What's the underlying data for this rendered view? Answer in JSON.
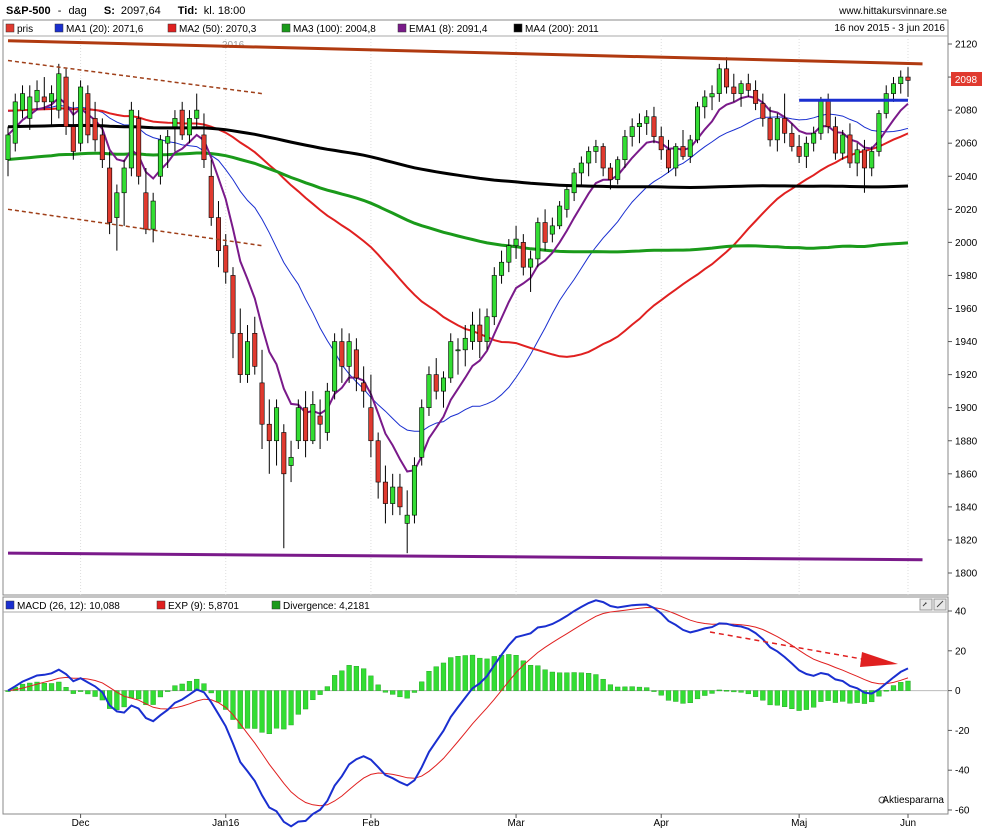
{
  "header": {
    "symbol": "S&P-500",
    "sep": "-",
    "period": "dag",
    "close_label": "S:",
    "close_value": "2097,64",
    "time_label": "Tid:",
    "time_value": "kl. 18:00",
    "site": "www.hittakursvinnare.se"
  },
  "legend_top": {
    "items": [
      {
        "label": "pris",
        "color": "#e03a2f"
      },
      {
        "label": "MA1 (20): 2071,6",
        "color": "#1a2fd0"
      },
      {
        "label": "MA2 (50): 2070,3",
        "color": "#e02020"
      },
      {
        "label": "MA3 (100): 2004,8",
        "color": "#1a9a1a"
      },
      {
        "label": "EMA1 (8): 2091,4",
        "color": "#7a1a8a"
      },
      {
        "label": "MA4 (200): 2011",
        "color": "#000000"
      }
    ],
    "date_range": "16 nov 2015 - 3 jun 2016"
  },
  "price_badge": "2098",
  "year_mark": "2016",
  "legend_bottom": {
    "items": [
      {
        "label": "MACD (26, 12): 10,088",
        "color": "#1a2fd0"
      },
      {
        "label": "EXP (9): 5,8701",
        "color": "#e02020"
      },
      {
        "label": "Divergence: 4,2181",
        "color": "#1a9a1a"
      }
    ]
  },
  "watermark": "Aktiespararna",
  "chart_data": [
    {
      "type": "candlestick",
      "y_ticks": [
        "2120",
        "2100",
        "2080",
        "2060",
        "2040",
        "2020",
        "2000",
        "1980",
        "1960",
        "1940",
        "1920",
        "1900",
        "1880",
        "1860",
        "1840",
        "1820",
        "1800"
      ],
      "ylim": [
        1790,
        2125
      ],
      "x_ticks": [
        "Dec",
        "Jan16",
        "Feb",
        "Mar",
        "Apr",
        "Maj",
        "Jun"
      ],
      "ohlc": [
        [
          2050,
          2070,
          2040,
          2065
        ],
        [
          2060,
          2090,
          2055,
          2085
        ],
        [
          2080,
          2095,
          2075,
          2090
        ],
        [
          2075,
          2095,
          2068,
          2088
        ],
        [
          2085,
          2098,
          2080,
          2092
        ],
        [
          2088,
          2100,
          2080,
          2085
        ],
        [
          2085,
          2095,
          2070,
          2090
        ],
        [
          2080,
          2108,
          2075,
          2102
        ],
        [
          2100,
          2105,
          2065,
          2070
        ],
        [
          2070,
          2085,
          2050,
          2055
        ],
        [
          2060,
          2098,
          2055,
          2094
        ],
        [
          2090,
          2095,
          2060,
          2065
        ],
        [
          2075,
          2085,
          2055,
          2062
        ],
        [
          2065,
          2075,
          2045,
          2050
        ],
        [
          2045,
          2055,
          2005,
          2012
        ],
        [
          2015,
          2035,
          1995,
          2030
        ],
        [
          2030,
          2050,
          2010,
          2045
        ],
        [
          2045,
          2085,
          2040,
          2080
        ],
        [
          2075,
          2080,
          2035,
          2040
        ],
        [
          2030,
          2045,
          2005,
          2008
        ],
        [
          2008,
          2030,
          2000,
          2025
        ],
        [
          2040,
          2065,
          2035,
          2062
        ],
        [
          2060,
          2068,
          2045,
          2064
        ],
        [
          2070,
          2080,
          2055,
          2075
        ],
        [
          2080,
          2085,
          2062,
          2065
        ],
        [
          2065,
          2080,
          2060,
          2075
        ],
        [
          2075,
          2090,
          2070,
          2080
        ],
        [
          2065,
          2078,
          2045,
          2050
        ],
        [
          2040,
          2050,
          2010,
          2015
        ],
        [
          2015,
          2025,
          1985,
          1995
        ],
        [
          1998,
          2005,
          1975,
          1982
        ],
        [
          1980,
          1985,
          1930,
          1945
        ],
        [
          1945,
          1960,
          1915,
          1920
        ],
        [
          1920,
          1950,
          1915,
          1940
        ],
        [
          1945,
          1955,
          1920,
          1925
        ],
        [
          1915,
          1935,
          1875,
          1890
        ],
        [
          1890,
          1905,
          1860,
          1880
        ],
        [
          1880,
          1905,
          1865,
          1900
        ],
        [
          1885,
          1890,
          1815,
          1860
        ],
        [
          1865,
          1880,
          1855,
          1870
        ],
        [
          1880,
          1905,
          1875,
          1900
        ],
        [
          1900,
          1910,
          1870,
          1880
        ],
        [
          1880,
          1910,
          1878,
          1902
        ],
        [
          1895,
          1905,
          1875,
          1890
        ],
        [
          1885,
          1915,
          1880,
          1910
        ],
        [
          1910,
          1945,
          1905,
          1940
        ],
        [
          1940,
          1948,
          1915,
          1925
        ],
        [
          1925,
          1945,
          1915,
          1940
        ],
        [
          1935,
          1942,
          1910,
          1918
        ],
        [
          1915,
          1925,
          1900,
          1910
        ],
        [
          1900,
          1920,
          1870,
          1880
        ],
        [
          1880,
          1885,
          1845,
          1855
        ],
        [
          1855,
          1865,
          1830,
          1842
        ],
        [
          1842,
          1860,
          1835,
          1852
        ],
        [
          1852,
          1860,
          1835,
          1840
        ],
        [
          1830,
          1850,
          1812,
          1835
        ],
        [
          1835,
          1870,
          1830,
          1865
        ],
        [
          1870,
          1905,
          1865,
          1900
        ],
        [
          1900,
          1925,
          1895,
          1920
        ],
        [
          1920,
          1930,
          1905,
          1910
        ],
        [
          1910,
          1922,
          1900,
          1918
        ],
        [
          1918,
          1945,
          1915,
          1940
        ],
        [
          1935,
          1942,
          1920,
          1935
        ],
        [
          1935,
          1950,
          1925,
          1942
        ],
        [
          1940,
          1958,
          1935,
          1950
        ],
        [
          1950,
          1960,
          1930,
          1940
        ],
        [
          1940,
          1960,
          1935,
          1955
        ],
        [
          1955,
          1985,
          1950,
          1980
        ],
        [
          1980,
          1995,
          1975,
          1988
        ],
        [
          1988,
          2002,
          1982,
          1998
        ],
        [
          1998,
          2010,
          1990,
          2002
        ],
        [
          2000,
          2005,
          1980,
          1985
        ],
        [
          1985,
          1995,
          1970,
          1990
        ],
        [
          1990,
          2015,
          1985,
          2012
        ],
        [
          2012,
          2020,
          1995,
          2000
        ],
        [
          2005,
          2015,
          2000,
          2010
        ],
        [
          2010,
          2025,
          2008,
          2022
        ],
        [
          2020,
          2035,
          2015,
          2032
        ],
        [
          2030,
          2045,
          2025,
          2042
        ],
        [
          2042,
          2052,
          2035,
          2048
        ],
        [
          2048,
          2058,
          2040,
          2055
        ],
        [
          2055,
          2062,
          2048,
          2058
        ],
        [
          2058,
          2060,
          2040,
          2045
        ],
        [
          2045,
          2048,
          2032,
          2038
        ],
        [
          2038,
          2052,
          2035,
          2050
        ],
        [
          2050,
          2068,
          2045,
          2064
        ],
        [
          2064,
          2075,
          2058,
          2070
        ],
        [
          2070,
          2078,
          2060,
          2072
        ],
        [
          2072,
          2080,
          2065,
          2076
        ],
        [
          2076,
          2082,
          2060,
          2064
        ],
        [
          2064,
          2070,
          2050,
          2056
        ],
        [
          2056,
          2062,
          2042,
          2045
        ],
        [
          2045,
          2060,
          2040,
          2058
        ],
        [
          2058,
          2068,
          2050,
          2052
        ],
        [
          2052,
          2065,
          2048,
          2062
        ],
        [
          2062,
          2085,
          2060,
          2082
        ],
        [
          2082,
          2092,
          2075,
          2088
        ],
        [
          2088,
          2095,
          2080,
          2090
        ],
        [
          2090,
          2108,
          2085,
          2105
        ],
        [
          2105,
          2112,
          2090,
          2094
        ],
        [
          2094,
          2102,
          2085,
          2090
        ],
        [
          2090,
          2098,
          2082,
          2096
        ],
        [
          2096,
          2102,
          2088,
          2092
        ],
        [
          2092,
          2098,
          2080,
          2084
        ],
        [
          2084,
          2090,
          2070,
          2075
        ],
        [
          2075,
          2082,
          2058,
          2062
        ],
        [
          2062,
          2078,
          2055,
          2075
        ],
        [
          2075,
          2090,
          2060,
          2066
        ],
        [
          2066,
          2072,
          2055,
          2058
        ],
        [
          2058,
          2065,
          2048,
          2052
        ],
        [
          2052,
          2064,
          2045,
          2060
        ],
        [
          2060,
          2070,
          2055,
          2066
        ],
        [
          2066,
          2088,
          2062,
          2086
        ],
        [
          2086,
          2090,
          2066,
          2070
        ],
        [
          2070,
          2076,
          2050,
          2054
        ],
        [
          2054,
          2068,
          2050,
          2065
        ],
        [
          2065,
          2072,
          2045,
          2048
        ],
        [
          2048,
          2060,
          2040,
          2056
        ],
        [
          2056,
          2062,
          2030,
          2045
        ],
        [
          2045,
          2058,
          2040,
          2055
        ],
        [
          2055,
          2080,
          2052,
          2078
        ],
        [
          2078,
          2095,
          2075,
          2090
        ],
        [
          2090,
          2100,
          2085,
          2096
        ],
        [
          2096,
          2104,
          2090,
          2100
        ],
        [
          2100,
          2106,
          2088,
          2098
        ]
      ],
      "support_lines": [
        {
          "name": "long-term-resistance",
          "from": [
            0,
            2122
          ],
          "to": [
            126,
            2108
          ],
          "color": "#b03a10"
        },
        {
          "name": "long-term-support",
          "from": [
            0,
            1812
          ],
          "to": [
            126,
            1808
          ],
          "color": "#7a1a8a"
        },
        {
          "name": "breakout-level",
          "from": [
            109,
            2086
          ],
          "to": [
            124,
            2086
          ],
          "color": "#1a2fd0"
        }
      ],
      "channel_lines": [
        {
          "name": "upper-dashed",
          "from": [
            0,
            2110
          ],
          "to": [
            35,
            2090
          ]
        },
        {
          "name": "lower-dashed",
          "from": [
            0,
            2020
          ],
          "to": [
            35,
            1998
          ]
        }
      ]
    },
    {
      "type": "line",
      "y_ticks": [
        "40",
        "20",
        "0",
        "-20",
        "-40",
        "-60"
      ],
      "ylim": [
        -60,
        42
      ],
      "series": [
        {
          "name": "MACD",
          "color": "#1a2fd0"
        },
        {
          "name": "EXP",
          "color": "#e02020"
        },
        {
          "name": "Divergence",
          "color": "#1a9a1a"
        }
      ]
    }
  ]
}
